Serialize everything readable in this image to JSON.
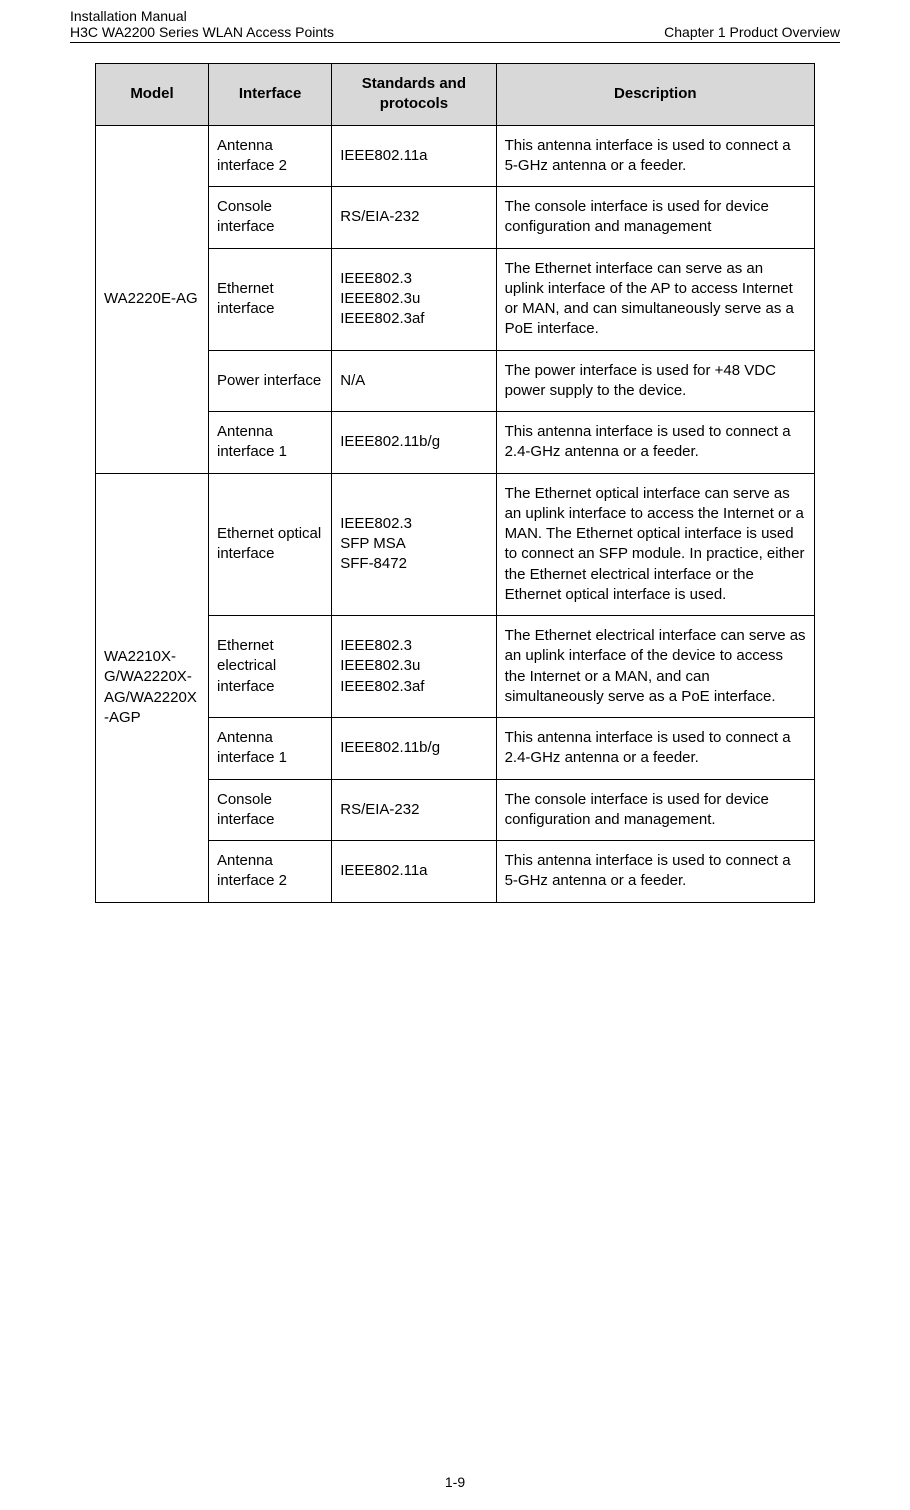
{
  "header": {
    "doc_line1": "Installation Manual",
    "doc_line2": "H3C WA2200 Series WLAN Access Points",
    "chapter": "Chapter 1  Product Overview"
  },
  "table": {
    "columns": [
      "Model",
      "Interface",
      "Standards and protocols",
      "Description"
    ],
    "groups": [
      {
        "model": "WA2220E-AG",
        "rows": [
          {
            "interface": "Antenna interface 2",
            "standards": [
              "IEEE802.11a"
            ],
            "description": "This antenna interface is used to connect a 5-GHz antenna or a feeder."
          },
          {
            "interface": "Console interface",
            "standards": [
              "RS/EIA-232"
            ],
            "description": "The console interface is used for device configuration and management"
          },
          {
            "interface": "Ethernet interface",
            "standards": [
              "IEEE802.3",
              "IEEE802.3u",
              "IEEE802.3af"
            ],
            "description": "The Ethernet interface can serve as an uplink interface of the AP to access Internet or MAN, and can simultaneously serve as a PoE interface."
          },
          {
            "interface": "Power interface",
            "standards": [
              "N/A"
            ],
            "description": "The power interface is used for +48 VDC power supply to the device."
          },
          {
            "interface": "Antenna interface 1",
            "standards": [
              "IEEE802.11b/g"
            ],
            "description": "This antenna interface is used to connect a 2.4-GHz antenna or a feeder."
          }
        ]
      },
      {
        "model": "WA2210X-G/WA2220X-AG/WA2220X-AGP",
        "rows": [
          {
            "interface": "Ethernet optical interface",
            "standards": [
              "IEEE802.3",
              "SFP MSA",
              "SFF-8472"
            ],
            "description": "The Ethernet optical interface can serve as an uplink interface to access the Internet or a MAN. The Ethernet optical interface is used to connect an SFP module. In practice, either the Ethernet electrical interface or the Ethernet optical interface is used."
          },
          {
            "interface": "Ethernet electrical interface",
            "standards": [
              "IEEE802.3",
              "IEEE802.3u",
              "IEEE802.3af"
            ],
            "description": "The Ethernet electrical interface can serve as an uplink interface of the device to access the Internet or a MAN, and can simultaneously serve as a PoE interface."
          },
          {
            "interface": "Antenna interface 1",
            "standards": [
              "IEEE802.11b/g"
            ],
            "description": "This antenna interface is used to connect a 2.4-GHz antenna or a feeder."
          },
          {
            "interface": "Console interface",
            "standards": [
              "RS/EIA-232"
            ],
            "description": "The console interface is used for device configuration and management."
          },
          {
            "interface": "Antenna interface 2",
            "standards": [
              "IEEE802.11a"
            ],
            "description": "This antenna interface is used to connect a 5-GHz antenna or a feeder."
          }
        ]
      }
    ]
  },
  "footer": {
    "page_number": "1-9"
  }
}
